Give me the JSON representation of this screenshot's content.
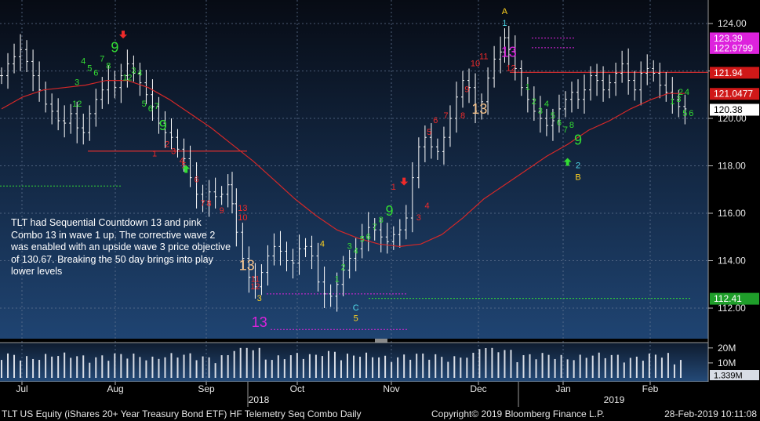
{
  "footer": {
    "left": "TLT US Equity (iShares 20+ Year Treasury Bond ETF) HF Telemetry Seq Combo  Daily",
    "center": "Copyright© 2019 Bloomberg Finance L.P.",
    "right": "28-Feb-2019 10:11:08"
  },
  "annotation": "TLT had Sequential Countdown 13 and pink Combo 13 in wave 1 up.  The corrective wave 2 was enabled with an upside wave 3 price objective of 130.67.  Breaking the 50 day brings into play lower levels",
  "colors": {
    "background_top": "#0a1220",
    "background_bottom": "#1e3f66",
    "bars": "#ffffff",
    "moving_average": "#e03030",
    "setup_buy": "#33dd33",
    "setup_sell": "#ee2a2a",
    "countdown": "#f5c28a",
    "combo": "#dd22dd",
    "wave_label": "#ffd21f"
  },
  "chart_data": {
    "type": "ohlc",
    "title": "",
    "xlabel": "",
    "ylabel": "",
    "ylim": [
      111.2,
      125.0
    ],
    "y_ticks": [
      112.0,
      114.0,
      116.0,
      118.0,
      120.0,
      122.0,
      124.0
    ],
    "grid": true,
    "month_labels": [
      "Jul",
      "Aug",
      "Sep",
      "Oct",
      "Nov",
      "Dec",
      "Jan",
      "Feb"
    ],
    "year_labels": [
      "2018",
      "2019"
    ],
    "price_tags": [
      {
        "label": "123.39",
        "value": 123.39,
        "color": "#dd22dd"
      },
      {
        "label": "122.9799",
        "value": 122.98,
        "color": "#dd22dd"
      },
      {
        "label": "121.94",
        "value": 121.94,
        "color": "#d01818"
      },
      {
        "label": "121.0477",
        "value": 121.05,
        "color": "#d01818"
      },
      {
        "label": "120.38",
        "value": 120.38,
        "color": "#ffffff"
      },
      {
        "label": "112.41",
        "value": 112.41,
        "color": "#1f9e2a"
      }
    ],
    "levels": [
      {
        "name": "TDST support",
        "value": 112.41,
        "color": "#33dd33"
      },
      {
        "name": "Green dotted",
        "value": 117.15,
        "color": "#33dd33"
      },
      {
        "name": "Red risk",
        "value": 121.94,
        "color": "#e03030"
      },
      {
        "name": "Red risk Sep",
        "value": 118.62,
        "color": "#e03030"
      },
      {
        "name": "Pink 123.39",
        "value": 123.39,
        "color": "#dd22dd"
      },
      {
        "name": "Pink 122.98",
        "value": 122.98,
        "color": "#dd22dd"
      },
      {
        "name": "Pink 112.60",
        "value": 112.6,
        "color": "#dd22dd"
      },
      {
        "name": "Pink 111.10",
        "value": 111.1,
        "color": "#dd22dd"
      }
    ],
    "volume_ylim": [
      0,
      22
    ],
    "volume_ticks": [
      "20M",
      "10M"
    ],
    "volume_last": "1.339M",
    "price_series": [
      [
        0,
        121.8
      ],
      [
        3,
        122.3
      ],
      [
        6,
        122.6
      ],
      [
        9,
        122.9
      ],
      [
        12,
        122.4
      ],
      [
        15,
        121.8
      ],
      [
        18,
        121.2
      ],
      [
        21,
        120.6
      ],
      [
        24,
        120.3
      ],
      [
        27,
        119.9
      ],
      [
        30,
        119.8
      ],
      [
        33,
        120.2
      ],
      [
        36,
        119.6
      ],
      [
        39,
        119.4
      ],
      [
        42,
        120.2
      ],
      [
        45,
        120.8
      ],
      [
        48,
        121.2
      ],
      [
        51,
        121.6
      ],
      [
        54,
        121.3
      ],
      [
        57,
        121.8
      ],
      [
        60,
        122.3
      ],
      [
        63,
        121.9
      ],
      [
        66,
        121.5
      ],
      [
        69,
        121.0
      ],
      [
        72,
        120.5
      ],
      [
        75,
        119.8
      ],
      [
        78,
        119.4
      ],
      [
        81,
        119.2
      ],
      [
        84,
        118.7
      ],
      [
        87,
        118.3
      ],
      [
        90,
        117.5
      ],
      [
        93,
        116.8
      ],
      [
        96,
        116.5
      ],
      [
        99,
        116.9
      ],
      [
        102,
        116.7
      ],
      [
        105,
        116.8
      ],
      [
        108,
        117.2
      ],
      [
        110,
        116.4
      ],
      [
        112,
        115.2
      ],
      [
        115,
        114.1
      ],
      [
        118,
        113.3
      ],
      [
        121,
        112.9
      ],
      [
        124,
        113.5
      ],
      [
        127,
        114.2
      ],
      [
        130,
        114.6
      ],
      [
        133,
        114.4
      ],
      [
        136,
        114.0
      ],
      [
        139,
        113.9
      ],
      [
        142,
        114.5
      ],
      [
        145,
        114.6
      ],
      [
        148,
        114.2
      ],
      [
        151,
        113.1
      ],
      [
        154,
        112.6
      ],
      [
        157,
        112.5
      ],
      [
        160,
        113.0
      ],
      [
        163,
        113.6
      ],
      [
        166,
        114.1
      ],
      [
        169,
        114.5
      ],
      [
        172,
        115.0
      ],
      [
        175,
        115.4
      ],
      [
        178,
        115.3
      ],
      [
        181,
        115.0
      ],
      [
        184,
        114.8
      ],
      [
        187,
        115.1
      ],
      [
        190,
        115.3
      ],
      [
        193,
        115.8
      ],
      [
        196,
        117.5
      ],
      [
        199,
        118.8
      ],
      [
        202,
        119.2
      ],
      [
        205,
        118.8
      ],
      [
        208,
        118.6
      ],
      [
        211,
        119.2
      ],
      [
        214,
        120.0
      ],
      [
        217,
        120.9
      ],
      [
        220,
        121.6
      ],
      [
        223,
        121.3
      ],
      [
        226,
        120.3
      ],
      [
        229,
        120.7
      ],
      [
        232,
        121.7
      ],
      [
        235,
        122.5
      ],
      [
        238,
        122.8
      ],
      [
        240,
        123.4
      ],
      [
        242,
        122.9
      ],
      [
        245,
        122.1
      ],
      [
        248,
        121.3
      ],
      [
        251,
        120.8
      ],
      [
        254,
        120.3
      ],
      [
        257,
        120.0
      ],
      [
        260,
        119.7
      ],
      [
        263,
        119.9
      ],
      [
        266,
        120.4
      ],
      [
        269,
        120.8
      ],
      [
        272,
        121.1
      ],
      [
        275,
        120.8
      ],
      [
        278,
        121.2
      ],
      [
        281,
        121.8
      ],
      [
        284,
        121.6
      ],
      [
        287,
        121.2
      ],
      [
        290,
        121.5
      ],
      [
        293,
        121.9
      ],
      [
        296,
        122.3
      ],
      [
        299,
        121.6
      ],
      [
        302,
        121.2
      ],
      [
        305,
        121.9
      ],
      [
        308,
        122.1
      ],
      [
        311,
        121.9
      ],
      [
        314,
        121.4
      ],
      [
        317,
        121.1
      ],
      [
        320,
        120.8
      ],
      [
        323,
        120.5
      ],
      [
        326,
        120.4
      ]
    ],
    "moving_average_50d": [
      [
        0,
        120.4
      ],
      [
        10,
        120.9
      ],
      [
        20,
        121.2
      ],
      [
        30,
        121.3
      ],
      [
        40,
        121.4
      ],
      [
        50,
        121.6
      ],
      [
        60,
        121.6
      ],
      [
        70,
        121.3
      ],
      [
        80,
        120.8
      ],
      [
        90,
        120.2
      ],
      [
        100,
        119.6
      ],
      [
        110,
        118.9
      ],
      [
        120,
        118.2
      ],
      [
        130,
        117.4
      ],
      [
        140,
        116.6
      ],
      [
        150,
        115.9
      ],
      [
        160,
        115.3
      ],
      [
        170,
        114.95
      ],
      [
        180,
        114.7
      ],
      [
        190,
        114.6
      ],
      [
        200,
        114.7
      ],
      [
        210,
        115.1
      ],
      [
        220,
        115.8
      ],
      [
        230,
        116.6
      ],
      [
        240,
        117.2
      ],
      [
        250,
        117.8
      ],
      [
        260,
        118.4
      ],
      [
        270,
        118.9
      ],
      [
        280,
        119.5
      ],
      [
        290,
        119.9
      ],
      [
        300,
        120.4
      ],
      [
        310,
        120.8
      ],
      [
        318,
        121.05
      ],
      [
        326,
        121.05
      ]
    ],
    "setup_labels": [
      {
        "t": 36,
        "v": 121.4,
        "text": "3",
        "color": "#33dd33"
      },
      {
        "t": 39,
        "v": 122.3,
        "text": "4",
        "color": "#33dd33"
      },
      {
        "t": 42,
        "v": 122.0,
        "text": "5",
        "color": "#33dd33"
      },
      {
        "t": 45,
        "v": 121.8,
        "text": "6",
        "color": "#33dd33"
      },
      {
        "t": 48,
        "v": 122.4,
        "text": "7",
        "color": "#33dd33"
      },
      {
        "t": 51,
        "v": 122.1,
        "text": "8",
        "color": "#33dd33"
      },
      {
        "t": 54,
        "v": 122.8,
        "text": "9",
        "color": "#33dd33",
        "big": true
      },
      {
        "t": 36,
        "v": 120.5,
        "text": "12",
        "color": "#33dd33"
      },
      {
        "t": 60,
        "v": 121.6,
        "text": "12",
        "color": "#33dd33"
      },
      {
        "t": 63,
        "v": 121.9,
        "text": "3",
        "color": "#33dd33"
      },
      {
        "t": 66,
        "v": 121.8,
        "text": "4",
        "color": "#33dd33"
      },
      {
        "t": 68,
        "v": 120.5,
        "text": "5",
        "color": "#33dd33"
      },
      {
        "t": 71,
        "v": 120.3,
        "text": "6",
        "color": "#33dd33"
      },
      {
        "t": 74,
        "v": 120.4,
        "text": "7",
        "color": "#33dd33"
      },
      {
        "t": 77,
        "v": 119.5,
        "text": "9",
        "color": "#33dd33",
        "big": true
      },
      {
        "t": 79,
        "v": 118.8,
        "text": "2",
        "color": "#ee2a2a"
      },
      {
        "t": 73,
        "v": 118.4,
        "text": "1",
        "color": "#ee2a2a"
      },
      {
        "t": 82,
        "v": 118.5,
        "text": "3",
        "color": "#ee2a2a"
      },
      {
        "t": 86,
        "v": 118.1,
        "text": "4",
        "color": "#ee2a2a"
      },
      {
        "t": 87,
        "v": 117.9,
        "text": "5",
        "color": "#ee2a2a"
      },
      {
        "t": 93,
        "v": 117.3,
        "text": "6",
        "color": "#ee2a2a"
      },
      {
        "t": 96,
        "v": 116.3,
        "text": "7",
        "color": "#ee2a2a"
      },
      {
        "t": 99,
        "v": 116.3,
        "text": "8",
        "color": "#ee2a2a"
      },
      {
        "t": 105,
        "v": 116.0,
        "text": "9",
        "color": "#ee2a2a"
      },
      {
        "t": 115,
        "v": 116.1,
        "text": "13",
        "color": "#ee2a2a"
      },
      {
        "t": 115,
        "v": 115.7,
        "text": "10",
        "color": "#ee2a2a"
      },
      {
        "t": 121,
        "v": 113.1,
        "text": "11",
        "color": "#ee2a2a"
      },
      {
        "t": 121,
        "v": 112.8,
        "text": "12",
        "color": "#ee2a2a"
      },
      {
        "t": 117,
        "v": 113.6,
        "text": "13",
        "color": "#f5c28a",
        "big": true
      },
      {
        "t": 123,
        "v": 112.3,
        "text": "3",
        "color": "#ffd21f"
      },
      {
        "t": 123,
        "v": 111.2,
        "text": "13",
        "color": "#dd22dd",
        "big": true
      },
      {
        "t": 153,
        "v": 114.6,
        "text": "4",
        "color": "#ffd21f"
      },
      {
        "t": 160,
        "v": 113.1,
        "text": "1",
        "color": "#33dd33"
      },
      {
        "t": 163,
        "v": 113.6,
        "text": "2",
        "color": "#33dd33"
      },
      {
        "t": 166,
        "v": 114.5,
        "text": "3",
        "color": "#33dd33"
      },
      {
        "t": 169,
        "v": 114.3,
        "text": "4",
        "color": "#33dd33"
      },
      {
        "t": 172,
        "v": 114.8,
        "text": "5",
        "color": "#33dd33"
      },
      {
        "t": 175,
        "v": 114.9,
        "text": "6",
        "color": "#33dd33"
      },
      {
        "t": 178,
        "v": 115.3,
        "text": "7",
        "color": "#33dd33"
      },
      {
        "t": 181,
        "v": 115.6,
        "text": "8",
        "color": "#33dd33"
      },
      {
        "t": 185,
        "v": 115.9,
        "text": "9",
        "color": "#33dd33",
        "big": true
      },
      {
        "t": 187,
        "v": 117.0,
        "text": "1",
        "color": "#ee2a2a"
      },
      {
        "t": 199,
        "v": 115.7,
        "text": "3",
        "color": "#ee2a2a"
      },
      {
        "t": 203,
        "v": 116.2,
        "text": "4",
        "color": "#ee2a2a"
      },
      {
        "t": 204,
        "v": 119.3,
        "text": "5",
        "color": "#ee2a2a"
      },
      {
        "t": 207,
        "v": 119.8,
        "text": "6",
        "color": "#ee2a2a"
      },
      {
        "t": 212,
        "v": 120.0,
        "text": "7",
        "color": "#ee2a2a"
      },
      {
        "t": 220,
        "v": 120.0,
        "text": "8",
        "color": "#ee2a2a"
      },
      {
        "t": 222,
        "v": 121.1,
        "text": "9",
        "color": "#ee2a2a"
      },
      {
        "t": 226,
        "v": 122.2,
        "text": "10",
        "color": "#ee2a2a"
      },
      {
        "t": 230,
        "v": 122.5,
        "text": "11",
        "color": "#ee2a2a"
      },
      {
        "t": 228,
        "v": 120.2,
        "text": "13",
        "color": "#f5c28a",
        "big": true
      },
      {
        "t": 243,
        "v": 122.0,
        "text": "12",
        "color": "#ee2a2a"
      },
      {
        "t": 242,
        "v": 122.6,
        "text": "13",
        "color": "#dd22dd",
        "big": true
      },
      {
        "t": 240,
        "v": 124.4,
        "text": "A",
        "color": "#ffd21f"
      },
      {
        "t": 240,
        "v": 123.9,
        "text": "1",
        "color": "#4fd8e8"
      },
      {
        "t": 251,
        "v": 121.2,
        "text": "1",
        "color": "#33dd33"
      },
      {
        "t": 254,
        "v": 120.6,
        "text": "2",
        "color": "#33dd33"
      },
      {
        "t": 257,
        "v": 120.2,
        "text": "3",
        "color": "#33dd33"
      },
      {
        "t": 260,
        "v": 120.5,
        "text": "4",
        "color": "#33dd33"
      },
      {
        "t": 263,
        "v": 120.0,
        "text": "5",
        "color": "#33dd33"
      },
      {
        "t": 266,
        "v": 119.7,
        "text": "6",
        "color": "#33dd33"
      },
      {
        "t": 269,
        "v": 119.4,
        "text": "7",
        "color": "#33dd33"
      },
      {
        "t": 272,
        "v": 119.6,
        "text": "8",
        "color": "#33dd33"
      },
      {
        "t": 275,
        "v": 118.9,
        "text": "9",
        "color": "#33dd33",
        "big": true
      },
      {
        "t": 275,
        "v": 117.9,
        "text": "2",
        "color": "#4fd8e8"
      },
      {
        "t": 275,
        "v": 117.4,
        "text": "B",
        "color": "#ffd21f"
      },
      {
        "t": 169,
        "v": 111.9,
        "text": "C",
        "color": "#4fd8e8"
      },
      {
        "t": 169,
        "v": 111.45,
        "text": "5",
        "color": "#ffd21f"
      },
      {
        "t": 320,
        "v": 120.6,
        "text": "1",
        "color": "#33dd33"
      },
      {
        "t": 324,
        "v": 121.0,
        "text": "2",
        "color": "#33dd33"
      },
      {
        "t": 323,
        "v": 120.7,
        "text": "3",
        "color": "#33dd33"
      },
      {
        "t": 327,
        "v": 121.0,
        "text": "4",
        "color": "#33dd33"
      },
      {
        "t": 326,
        "v": 120.1,
        "text": "5",
        "color": "#33dd33"
      },
      {
        "t": 329,
        "v": 120.1,
        "text": "6",
        "color": "#33dd33"
      }
    ],
    "arrows": [
      {
        "t": 58,
        "v": 123.5,
        "dir": "down",
        "color": "#ee2a2a"
      },
      {
        "t": 88,
        "v": 117.9,
        "dir": "up",
        "color": "#33dd33"
      },
      {
        "t": 192,
        "v": 117.3,
        "dir": "down",
        "color": "#ee2a2a"
      },
      {
        "t": 270,
        "v": 118.2,
        "dir": "up",
        "color": "#33dd33"
      }
    ]
  }
}
